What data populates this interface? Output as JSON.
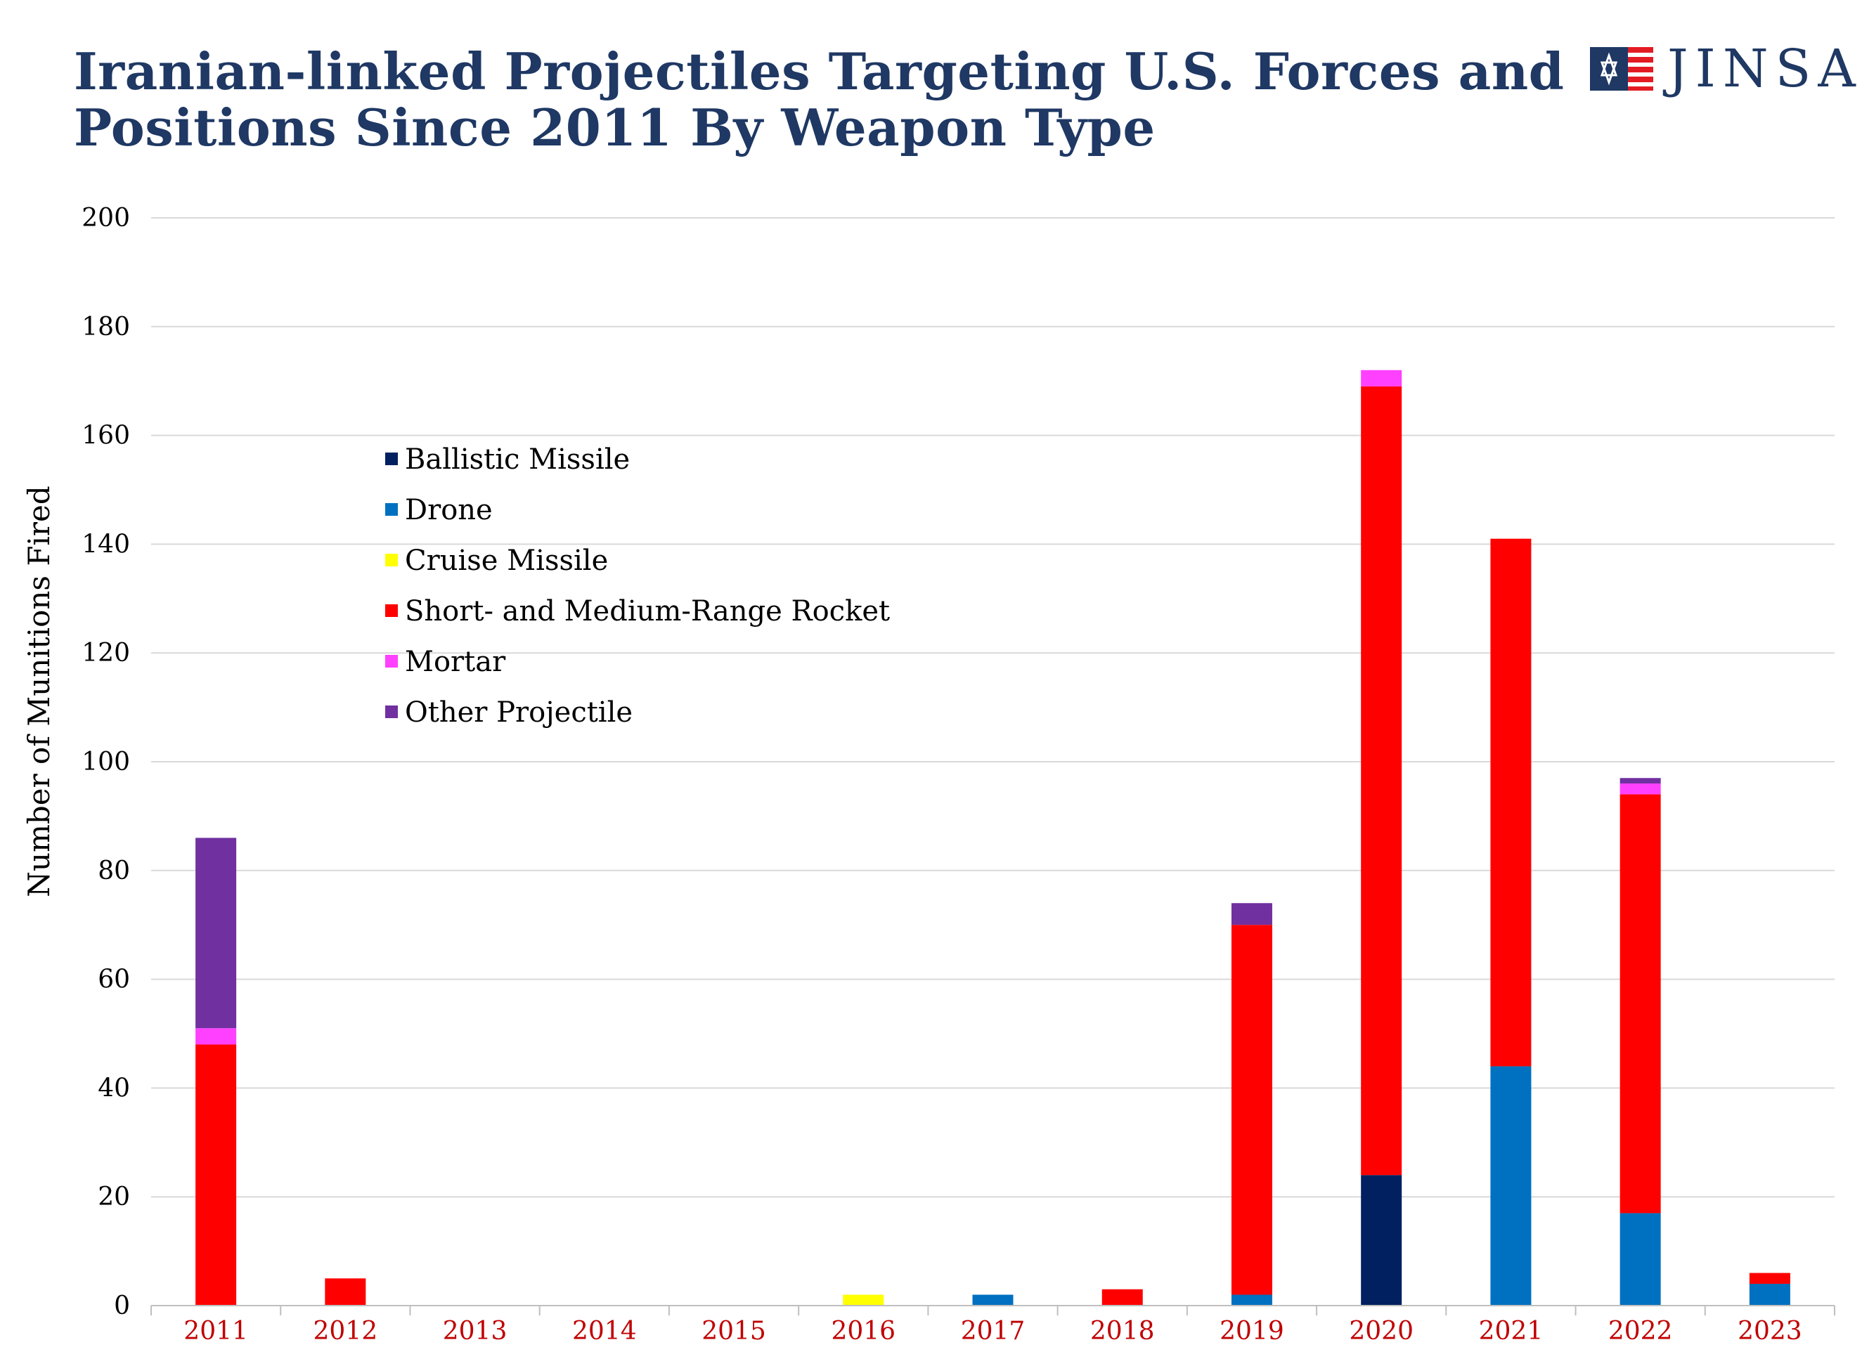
{
  "title": "Iranian-linked Projectiles Targeting U.S. Forces and Positions Since 2011 By Weapon Type",
  "logo": {
    "text": "JINSA",
    "icon": "star-of-david-flag-icon"
  },
  "chart_data": {
    "type": "bar",
    "stacked": true,
    "title": "Iranian-linked Projectiles Targeting U.S. Forces and Positions Since 2011 By Weapon Type",
    "xlabel": "",
    "ylabel": "Number of Munitions Fired",
    "ylim": [
      0,
      200
    ],
    "yticks": [
      0,
      20,
      40,
      60,
      80,
      100,
      120,
      140,
      160,
      180,
      200
    ],
    "grid": true,
    "legend_position": "top-left",
    "categories": [
      "2011",
      "2012",
      "2013",
      "2014",
      "2015",
      "2016",
      "2017",
      "2018",
      "2019",
      "2020",
      "2021",
      "2022",
      "2023"
    ],
    "series": [
      {
        "name": "Ballistic Missile",
        "color": "#002060",
        "values": [
          0,
          0,
          0,
          0,
          0,
          0,
          0,
          0,
          0,
          24,
          0,
          0,
          0
        ]
      },
      {
        "name": "Drone",
        "color": "#0070c0",
        "values": [
          0,
          0,
          0,
          0,
          0,
          0,
          2,
          0,
          2,
          0,
          44,
          17,
          4
        ]
      },
      {
        "name": "Cruise Missile",
        "color": "#ffff00",
        "values": [
          0,
          0,
          0,
          0,
          0,
          2,
          0,
          0,
          0,
          0,
          0,
          0,
          0
        ]
      },
      {
        "name": "Short- and Medium-Range Rocket",
        "color": "#ff0000",
        "values": [
          48,
          5,
          0,
          0,
          0,
          0,
          0,
          3,
          68,
          145,
          97,
          77,
          2
        ]
      },
      {
        "name": "Mortar",
        "color": "#ff40ff",
        "values": [
          3,
          0,
          0,
          0,
          0,
          0,
          0,
          0,
          0,
          3,
          0,
          2,
          0
        ]
      },
      {
        "name": "Other Projectile",
        "color": "#7030a0",
        "values": [
          35,
          0,
          0,
          0,
          0,
          0,
          0,
          0,
          4,
          0,
          0,
          1,
          0
        ]
      }
    ]
  }
}
